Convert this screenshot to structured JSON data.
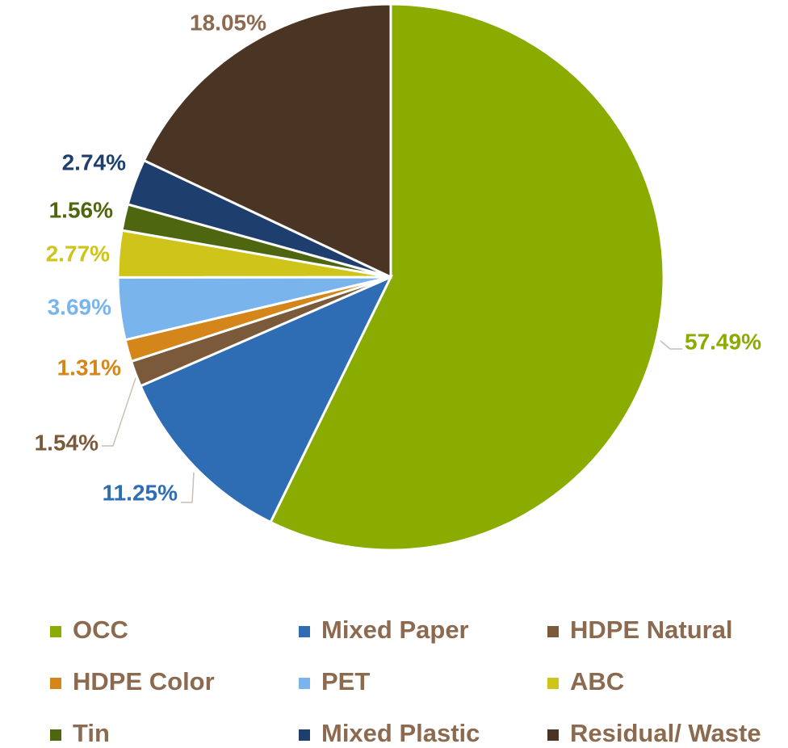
{
  "chart_data": {
    "type": "pie",
    "categories": [
      "OCC",
      "Mixed Paper",
      "HDPE Natural",
      "HDPE Color",
      "PET",
      "ABC",
      "Tin",
      "Mixed Plastic",
      "Residual/ Waste"
    ],
    "values": [
      57.49,
      11.25,
      1.54,
      1.31,
      3.69,
      2.77,
      1.56,
      2.74,
      18.05
    ],
    "value_labels": [
      "57.49%",
      "11.25%",
      "1.54%",
      "1.31%",
      "3.69%",
      "2.77%",
      "1.56%",
      "2.74%",
      "18.05%"
    ],
    "colors": [
      "#8aab00",
      "#2e6db4",
      "#7a5a3a",
      "#d4861a",
      "#7ab4ec",
      "#cfc41a",
      "#4e6610",
      "#1e3f6e",
      "#4a3424"
    ],
    "legend": "bottom"
  }
}
